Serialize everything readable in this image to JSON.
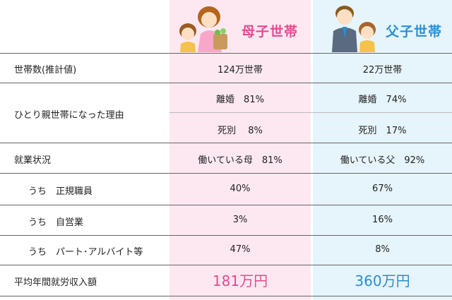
{
  "columns": {
    "mother": "母子世帯",
    "father": "父子世帯"
  },
  "rows": {
    "households": {
      "label": "世帯数(推計値)",
      "mother": "124万世帯",
      "father": "22万世帯"
    },
    "reason": {
      "label": "ひとり親世帯になった理由",
      "divorce": {
        "mother": "離婚　81%",
        "father": "離婚　74%"
      },
      "bereavement": {
        "mother": "死別　 8%",
        "father": "死別　17%"
      }
    },
    "employment": {
      "label": "就業状況",
      "mother": "働いている母　81%",
      "father": "働いている父　92%"
    },
    "regular": {
      "label": "うち　正規職員",
      "mother": "40%",
      "father": "67%"
    },
    "self_employed": {
      "label": "うち　自営業",
      "mother": "3%",
      "father": "16%"
    },
    "part_time": {
      "label": "うち　パート･アルバイト等",
      "mother": "47%",
      "father": "8%"
    },
    "income": {
      "label": "平均年間就労収入額",
      "mother": "181万円",
      "father": "360万円"
    }
  },
  "colors": {
    "mother_accent": "#e8498f",
    "father_accent": "#2a8fd0",
    "mother_bg": "#fde8f1",
    "father_bg": "#e6f4fb"
  },
  "icons": {
    "mother": "mother-and-child-illustration",
    "father": "father-and-child-illustration"
  }
}
